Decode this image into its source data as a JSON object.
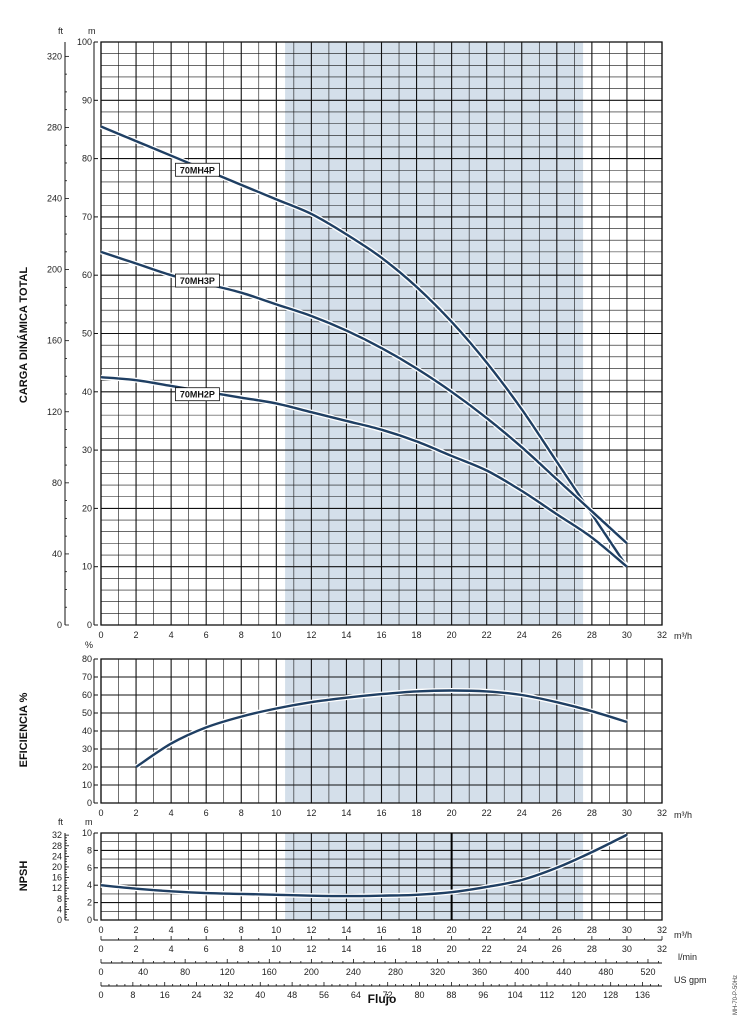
{
  "colors": {
    "shade": "#d4dfea",
    "grid": "#111111",
    "curve": "#1f3f63",
    "bg": "#ffffff"
  },
  "chart_data": [
    {
      "type": "line",
      "panel": "head",
      "ylabel": "CARGA DINÁMICA TOTAL",
      "y_unit": "m",
      "y2_unit": "ft",
      "x_unit": "m³/h",
      "xlim": [
        0,
        32
      ],
      "ylim": [
        0,
        100
      ],
      "x_ticks": [
        0,
        2,
        4,
        6,
        8,
        10,
        12,
        14,
        16,
        18,
        20,
        22,
        24,
        26,
        28,
        30,
        32
      ],
      "y_ticks": [
        0,
        10,
        20,
        30,
        40,
        50,
        60,
        70,
        80,
        90,
        100
      ],
      "y2_ticks": [
        0,
        40,
        80,
        120,
        160,
        200,
        240,
        280,
        320
      ],
      "shaded_x": [
        10.5,
        27.5
      ],
      "grid": true,
      "series": [
        {
          "name": "70MH4P",
          "label_at": [
            5.5,
            78
          ],
          "x": [
            0,
            2,
            4,
            6,
            8,
            10,
            12,
            14,
            16,
            18,
            20,
            22,
            24,
            26,
            28,
            30
          ],
          "y": [
            85.5,
            83,
            80.5,
            78,
            75.5,
            73,
            70.5,
            67,
            63,
            58,
            52,
            45,
            37,
            28,
            19,
            10
          ]
        },
        {
          "name": "70MH3P",
          "label_at": [
            5.5,
            59
          ],
          "x": [
            0,
            2,
            4,
            6,
            8,
            10,
            12,
            14,
            16,
            18,
            20,
            22,
            24,
            26,
            28,
            30
          ],
          "y": [
            64,
            62,
            60,
            58.5,
            57,
            55,
            53,
            50.5,
            47.5,
            44,
            40,
            35.5,
            30.5,
            25,
            19.5,
            14
          ]
        },
        {
          "name": "70MH2P",
          "label_at": [
            5.5,
            39.5
          ],
          "x": [
            0,
            2,
            4,
            6,
            8,
            10,
            12,
            14,
            16,
            18,
            20,
            22,
            24,
            26,
            28,
            30
          ],
          "y": [
            42.5,
            42,
            41,
            40,
            39,
            38,
            36.5,
            35,
            33.5,
            31.5,
            29,
            26.5,
            23,
            19,
            15,
            10
          ]
        }
      ]
    },
    {
      "type": "line",
      "panel": "efficiency",
      "ylabel": "EFICIENCIA %",
      "y_unit": "%",
      "x_unit": "m³/h",
      "xlim": [
        0,
        32
      ],
      "ylim": [
        0,
        80
      ],
      "x_ticks": [
        0,
        2,
        4,
        6,
        8,
        10,
        12,
        14,
        16,
        18,
        20,
        22,
        24,
        26,
        28,
        30,
        32
      ],
      "y_ticks": [
        0,
        10,
        20,
        30,
        40,
        50,
        60,
        70,
        80
      ],
      "shaded_x": [
        10.5,
        27.5
      ],
      "grid": true,
      "series": [
        {
          "x": [
            2,
            4,
            6,
            8,
            10,
            12,
            14,
            16,
            18,
            20,
            22,
            24,
            26,
            28,
            30
          ],
          "y": [
            20,
            33,
            42,
            48,
            52.5,
            56,
            58.5,
            60.5,
            62,
            62.5,
            62,
            60,
            56,
            51,
            45
          ]
        }
      ]
    },
    {
      "type": "line",
      "panel": "npsh",
      "ylabel": "NPSH",
      "y_unit": "m",
      "y2_unit": "ft",
      "x_unit": "m³/h",
      "xlim": [
        0,
        32
      ],
      "ylim": [
        0,
        10
      ],
      "x_ticks": [
        0,
        2,
        4,
        6,
        8,
        10,
        12,
        14,
        16,
        18,
        20,
        22,
        24,
        26,
        28,
        30,
        32
      ],
      "y_ticks": [
        0,
        2,
        4,
        6,
        8,
        10
      ],
      "y2_ticks": [
        0,
        4,
        8,
        12,
        16,
        20,
        24,
        28,
        32
      ],
      "shaded_x": [
        10.5,
        27.5
      ],
      "grid": true,
      "series": [
        {
          "x": [
            0,
            2,
            4,
            6,
            8,
            10,
            12,
            14,
            16,
            18,
            20,
            22,
            24,
            26,
            28,
            30
          ],
          "y": [
            4,
            3.6,
            3.3,
            3.1,
            3,
            2.9,
            2.8,
            2.75,
            2.8,
            2.9,
            3.2,
            3.8,
            4.6,
            6,
            7.8,
            9.8
          ]
        }
      ]
    }
  ],
  "flow_scales": [
    {
      "unit": "l/min",
      "ticks": [
        0,
        40,
        80,
        120,
        160,
        200,
        240,
        280,
        320,
        360,
        400,
        440,
        480,
        520
      ]
    },
    {
      "unit": "US gpm",
      "ticks": [
        0,
        8,
        16,
        24,
        32,
        40,
        48,
        56,
        64,
        72,
        80,
        88,
        96,
        104,
        112,
        120,
        128,
        136
      ]
    }
  ],
  "x_title": "Flujo",
  "m3h_axis": {
    "unit": "m³/h",
    "ticks": [
      0,
      2,
      4,
      6,
      8,
      10,
      12,
      14,
      16,
      18,
      20,
      22,
      24,
      26,
      28,
      30,
      32
    ]
  },
  "doc_code": "MH-70-P-50Hz"
}
